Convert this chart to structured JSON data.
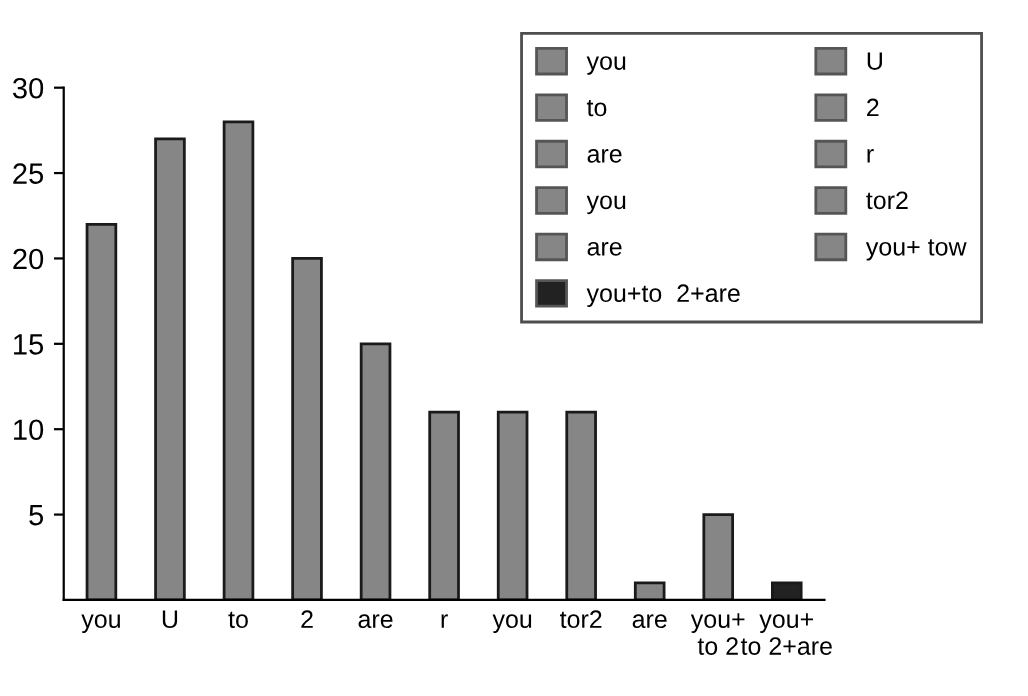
{
  "chart_data": {
    "type": "bar",
    "categories": [
      "you",
      "U",
      "to",
      "2",
      "are",
      "r",
      "you",
      "tor2",
      "are",
      "you+\nto 2",
      "you+\nto 2+are"
    ],
    "series": [
      {
        "name": "you",
        "color": "#868686",
        "values": [
          22,
          null,
          null,
          null,
          null,
          null,
          null,
          null,
          null,
          null,
          null
        ]
      },
      {
        "name": "U",
        "color": "#868686",
        "values": [
          null,
          27,
          null,
          null,
          null,
          null,
          null,
          null,
          null,
          null,
          null
        ]
      },
      {
        "name": "to",
        "color": "#868686",
        "values": [
          null,
          null,
          28,
          null,
          null,
          null,
          null,
          null,
          null,
          null,
          null
        ]
      },
      {
        "name": "2",
        "color": "#868686",
        "values": [
          null,
          null,
          null,
          20,
          null,
          null,
          null,
          null,
          null,
          null,
          null
        ]
      },
      {
        "name": "are",
        "color": "#868686",
        "values": [
          null,
          null,
          null,
          null,
          15,
          null,
          null,
          null,
          null,
          null,
          null
        ]
      },
      {
        "name": "r",
        "color": "#868686",
        "values": [
          null,
          null,
          null,
          null,
          null,
          11,
          null,
          null,
          null,
          null,
          null
        ]
      },
      {
        "name": "you",
        "color": "#868686",
        "values": [
          null,
          null,
          null,
          null,
          null,
          null,
          11,
          null,
          null,
          null,
          null
        ]
      },
      {
        "name": "tor2",
        "color": "#868686",
        "values": [
          null,
          null,
          null,
          null,
          null,
          null,
          null,
          11,
          null,
          null,
          null
        ]
      },
      {
        "name": "are",
        "color": "#868686",
        "values": [
          null,
          null,
          null,
          null,
          null,
          null,
          null,
          null,
          1,
          null,
          null
        ]
      },
      {
        "name": "you+ tow",
        "color": "#868686",
        "values": [
          null,
          null,
          null,
          null,
          null,
          null,
          null,
          null,
          null,
          5,
          null
        ]
      },
      {
        "name": "you+to  2+are",
        "color": "#222222",
        "values": [
          null,
          null,
          null,
          null,
          null,
          null,
          null,
          null,
          null,
          null,
          1
        ]
      }
    ],
    "ylim": [
      0,
      30
    ],
    "yticks": [
      5,
      10,
      15,
      20,
      25,
      30
    ],
    "grid": false,
    "legend": "top right"
  }
}
